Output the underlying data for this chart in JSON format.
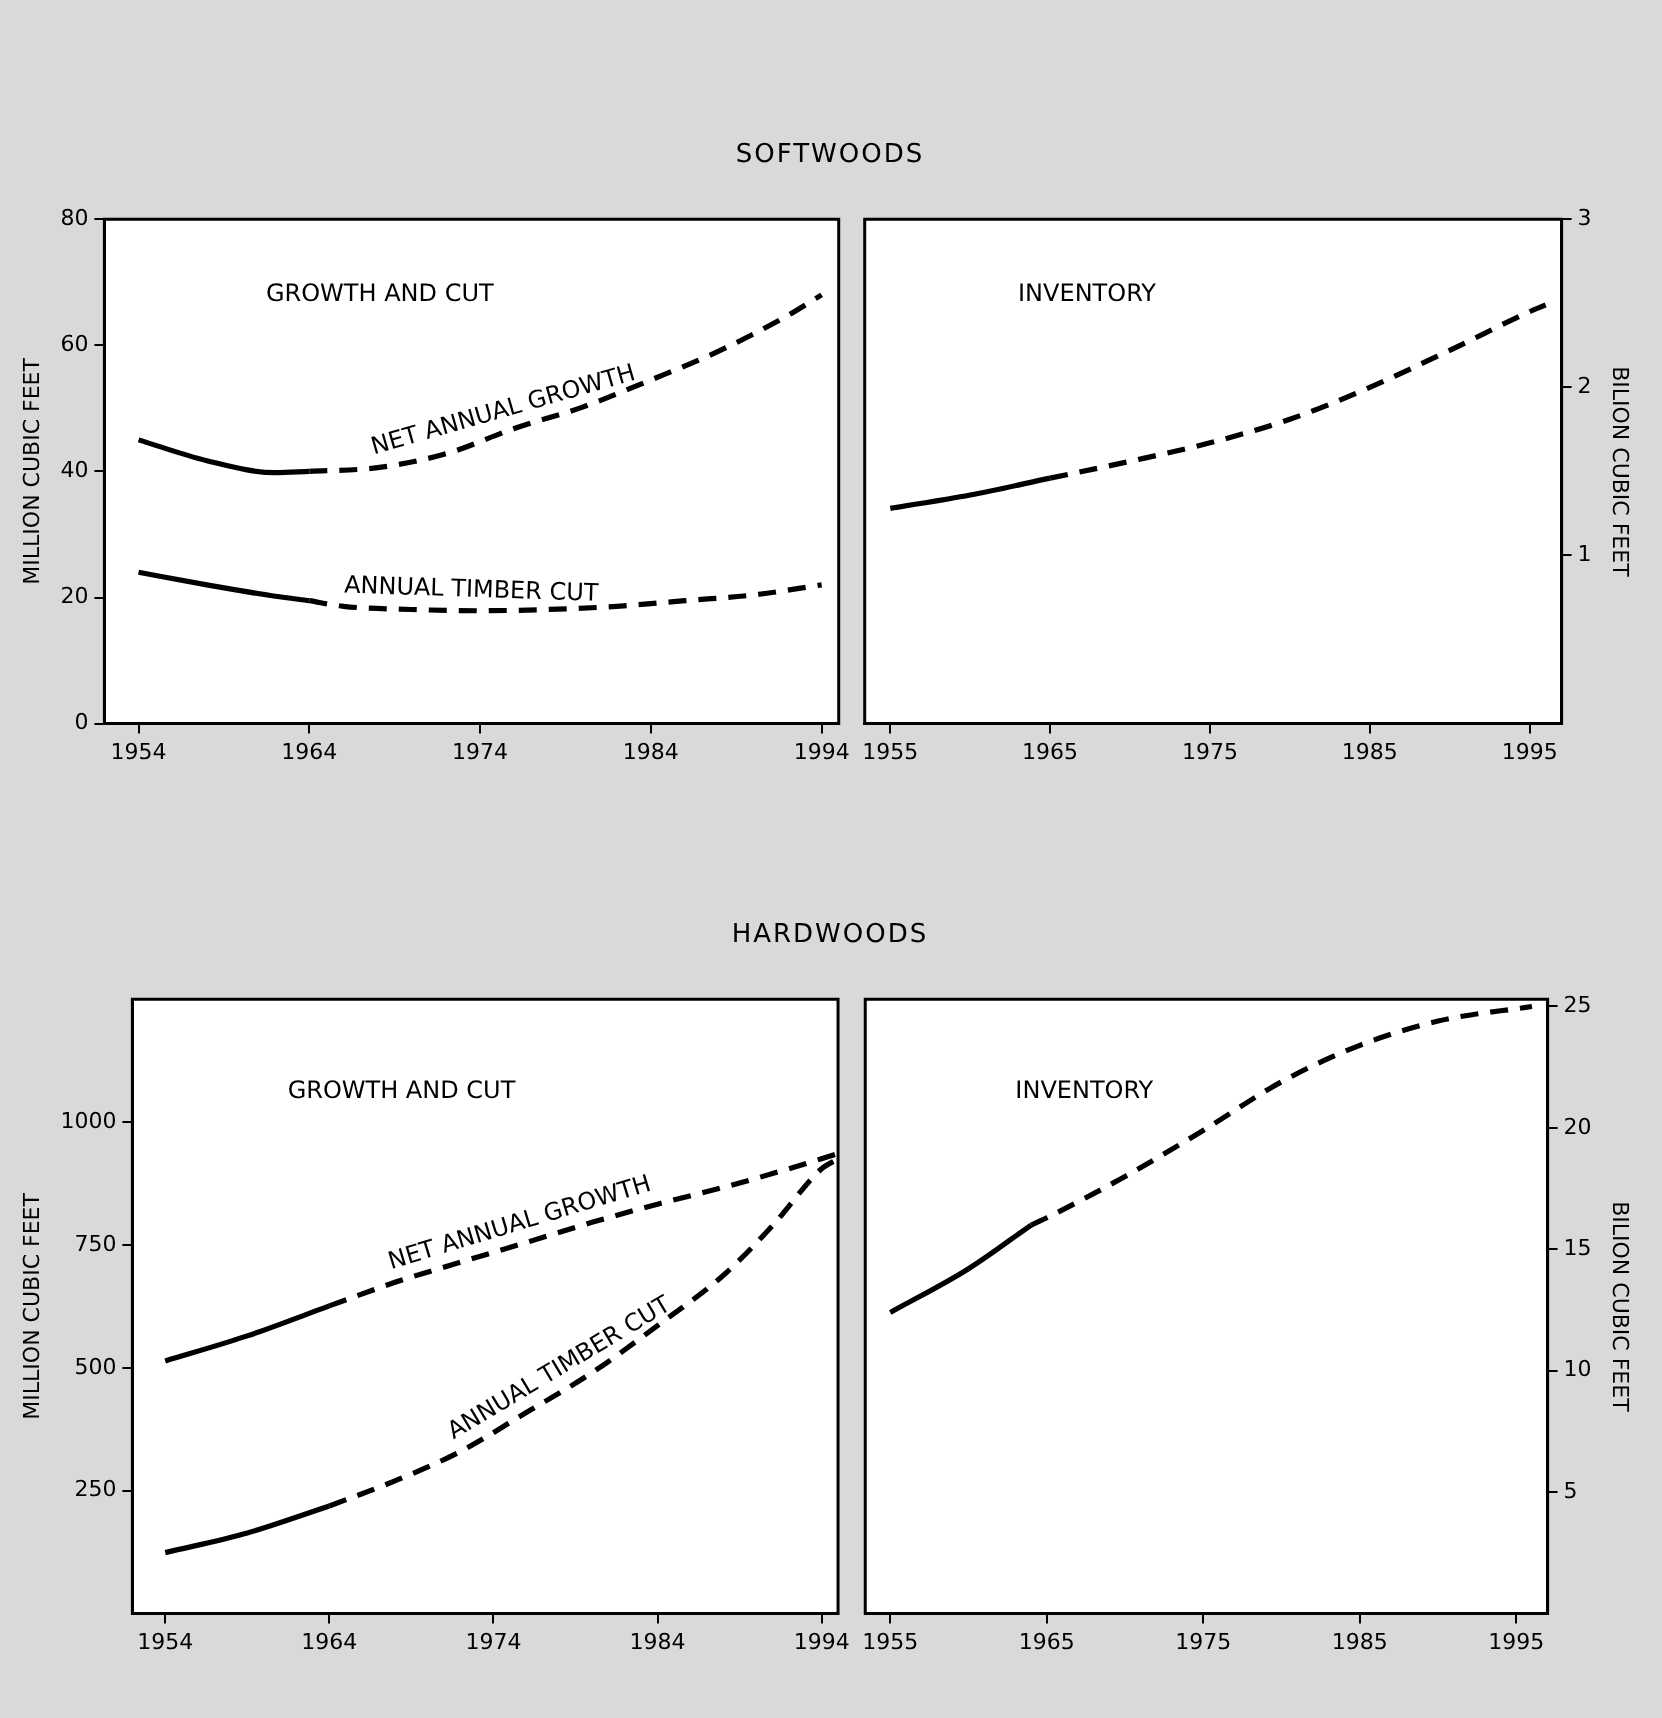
{
  "chart_data": [
    {
      "type": "line",
      "title": "SOFTWOODS",
      "subtitle": "GROWTH AND CUT",
      "ylabel": "MILLION CUBIC FEET",
      "xlim": [
        1952,
        1995
      ],
      "xticks": [
        1954,
        1964,
        1974,
        1984,
        1994
      ],
      "ylim": [
        0,
        80
      ],
      "yticks": [
        0,
        20,
        40,
        60,
        80
      ],
      "grid": false,
      "legend": false,
      "marker": "none",
      "series": [
        {
          "color": "#000000",
          "line_style": "solid",
          "x": [
            1954,
            1958,
            1962,
            1964
          ],
          "values": [
            45,
            41.7,
            39.8,
            40
          ]
        },
        {
          "name": "NET ANNUAL GROWTH",
          "color": "#000000",
          "line_style": "dashed",
          "x": [
            1964,
            1968,
            1972,
            1976,
            1980,
            1984,
            1988,
            1992,
            1994
          ],
          "values": [
            40,
            40.6,
            42.8,
            46.8,
            50.2,
            54.5,
            59.1,
            64.7,
            68
          ]
        },
        {
          "color": "#000000",
          "line_style": "solid",
          "x": [
            1954,
            1958,
            1962,
            1964
          ],
          "values": [
            24,
            22,
            20.2,
            19.5
          ]
        },
        {
          "name": "ANNUAL TIMBER CUT",
          "color": "#000000",
          "line_style": "dashed",
          "x": [
            1964,
            1966,
            1970,
            1974,
            1978,
            1982,
            1986,
            1990,
            1994
          ],
          "values": [
            19.5,
            18.6,
            18.1,
            17.9,
            18.1,
            18.6,
            19.5,
            20.4,
            22
          ]
        }
      ]
    },
    {
      "type": "line",
      "subtitle": "INVENTORY",
      "y2label": "BILION CUBIC FEET",
      "xlim": [
        1953.4,
        1997
      ],
      "xticks": [
        1955,
        1965,
        1975,
        1985,
        1995
      ],
      "y2lim": [
        0,
        3
      ],
      "y2ticks": [
        1,
        2,
        3
      ],
      "grid": false,
      "legend": false,
      "marker": "none",
      "series": [
        {
          "color": "#000000",
          "line_style": "solid",
          "axis": "y2",
          "x": [
            1955,
            1960,
            1965
          ],
          "values": [
            1.28,
            1.36,
            1.46
          ]
        },
        {
          "color": "#000000",
          "line_style": "dashed",
          "axis": "y2",
          "x": [
            1965,
            1970,
            1975,
            1980,
            1985,
            1990,
            1995,
            1996
          ],
          "values": [
            1.46,
            1.56,
            1.67,
            1.81,
            2.0,
            2.22,
            2.45,
            2.49
          ]
        }
      ]
    },
    {
      "type": "line",
      "title": "HARDWOODS",
      "subtitle": "GROWTH AND CUT",
      "ylabel": "MILLION CUBIC FEET",
      "xlim": [
        1952,
        1995
      ],
      "xticks": [
        1954,
        1964,
        1974,
        1984,
        1994
      ],
      "ylim": [
        0,
        1250
      ],
      "yticks": [
        250,
        500,
        750,
        1000
      ],
      "grid": false,
      "legend": false,
      "marker": "none",
      "series": [
        {
          "color": "#000000",
          "line_style": "solid",
          "x": [
            1954,
            1959,
            1964
          ],
          "values": [
            514,
            565,
            626
          ]
        },
        {
          "name": "NET ANNUAL GROWTH",
          "color": "#000000",
          "line_style": "dashed",
          "x": [
            1964,
            1968,
            1972,
            1976,
            1980,
            1984,
            1988,
            1992,
            1995
          ],
          "values": [
            626,
            674,
            715,
            755,
            796,
            833,
            867,
            905,
            936
          ]
        },
        {
          "color": "#000000",
          "line_style": "solid",
          "x": [
            1954,
            1959,
            1964
          ],
          "values": [
            124,
            164,
            219
          ]
        },
        {
          "name": "ANNUAL TIMBER CUT",
          "color": "#000000",
          "line_style": "dashed",
          "x": [
            1964,
            1968,
            1972,
            1976,
            1980,
            1984,
            1988,
            1991,
            1994,
            1995
          ],
          "values": [
            219,
            270,
            330,
            409,
            490,
            586,
            688,
            789,
            905,
            925
          ]
        }
      ]
    },
    {
      "type": "line",
      "subtitle": "INVENTORY",
      "y2label": "BILION CUBIC FEET",
      "xlim": [
        1953.4,
        1997
      ],
      "xticks": [
        1955,
        1965,
        1975,
        1985,
        1995
      ],
      "y2lim": [
        0,
        25.3
      ],
      "y2ticks": [
        5,
        10,
        15,
        20,
        25
      ],
      "grid": false,
      "legend": false,
      "marker": "none",
      "series": [
        {
          "color": "#000000",
          "line_style": "solid",
          "axis": "y2",
          "x": [
            1955,
            1960,
            1964
          ],
          "values": [
            12.4,
            14.2,
            16.0
          ]
        },
        {
          "color": "#000000",
          "line_style": "dashed",
          "axis": "y2",
          "x": [
            1964,
            1965,
            1970,
            1975,
            1980,
            1985,
            1990,
            1996
          ],
          "values": [
            16.0,
            16.3,
            18.0,
            19.9,
            21.9,
            23.4,
            24.4,
            25.0
          ]
        }
      ]
    }
  ]
}
